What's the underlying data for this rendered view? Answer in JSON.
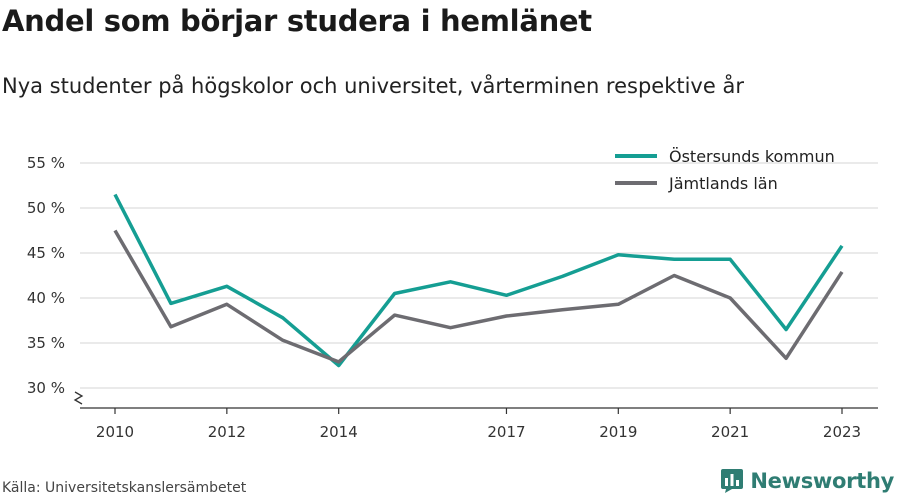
{
  "title": "Andel som börjar studera i hemlänet",
  "subtitle": "Nya studenter på högskolor och universitet, vårterminen respektive år",
  "source": "Källa: Universitetskanslersämbetet",
  "brand": {
    "name": "Newsworthy",
    "icon": "newsworthy-logo-icon"
  },
  "colors": {
    "series_ostersund": "#159e93",
    "series_jamtland": "#6d6c71",
    "grid": "#d6d6d6",
    "axis": "#333333",
    "brand": "#2f7d73"
  },
  "chart_data": {
    "type": "line",
    "title": "",
    "xlabel": "",
    "ylabel": "",
    "x": [
      2010,
      2011,
      2012,
      2013,
      2014,
      2015,
      2016,
      2017,
      2018,
      2019,
      2020,
      2021,
      2022,
      2023
    ],
    "x_tick_labels": [
      "2010",
      "2012",
      "2014",
      "2017",
      "2019",
      "2021",
      "2023"
    ],
    "y_tick_labels": [
      "30 %",
      "35 %",
      "40 %",
      "45 %",
      "50 %",
      "55 %"
    ],
    "ylim": [
      30,
      55
    ],
    "y_axis_break": true,
    "grid": true,
    "legend_position": "top-right",
    "series": [
      {
        "name": "Östersunds kommun",
        "color": "#159e93",
        "values": [
          51.5,
          39.4,
          41.3,
          37.8,
          32.5,
          40.5,
          41.8,
          40.3,
          42.4,
          44.8,
          44.3,
          44.3,
          36.5,
          45.8
        ]
      },
      {
        "name": "Jämtlands län",
        "color": "#6d6c71",
        "values": [
          47.5,
          36.8,
          39.3,
          35.3,
          32.9,
          38.1,
          36.7,
          38.0,
          38.7,
          39.3,
          42.5,
          40.0,
          33.3,
          42.9
        ]
      }
    ]
  }
}
